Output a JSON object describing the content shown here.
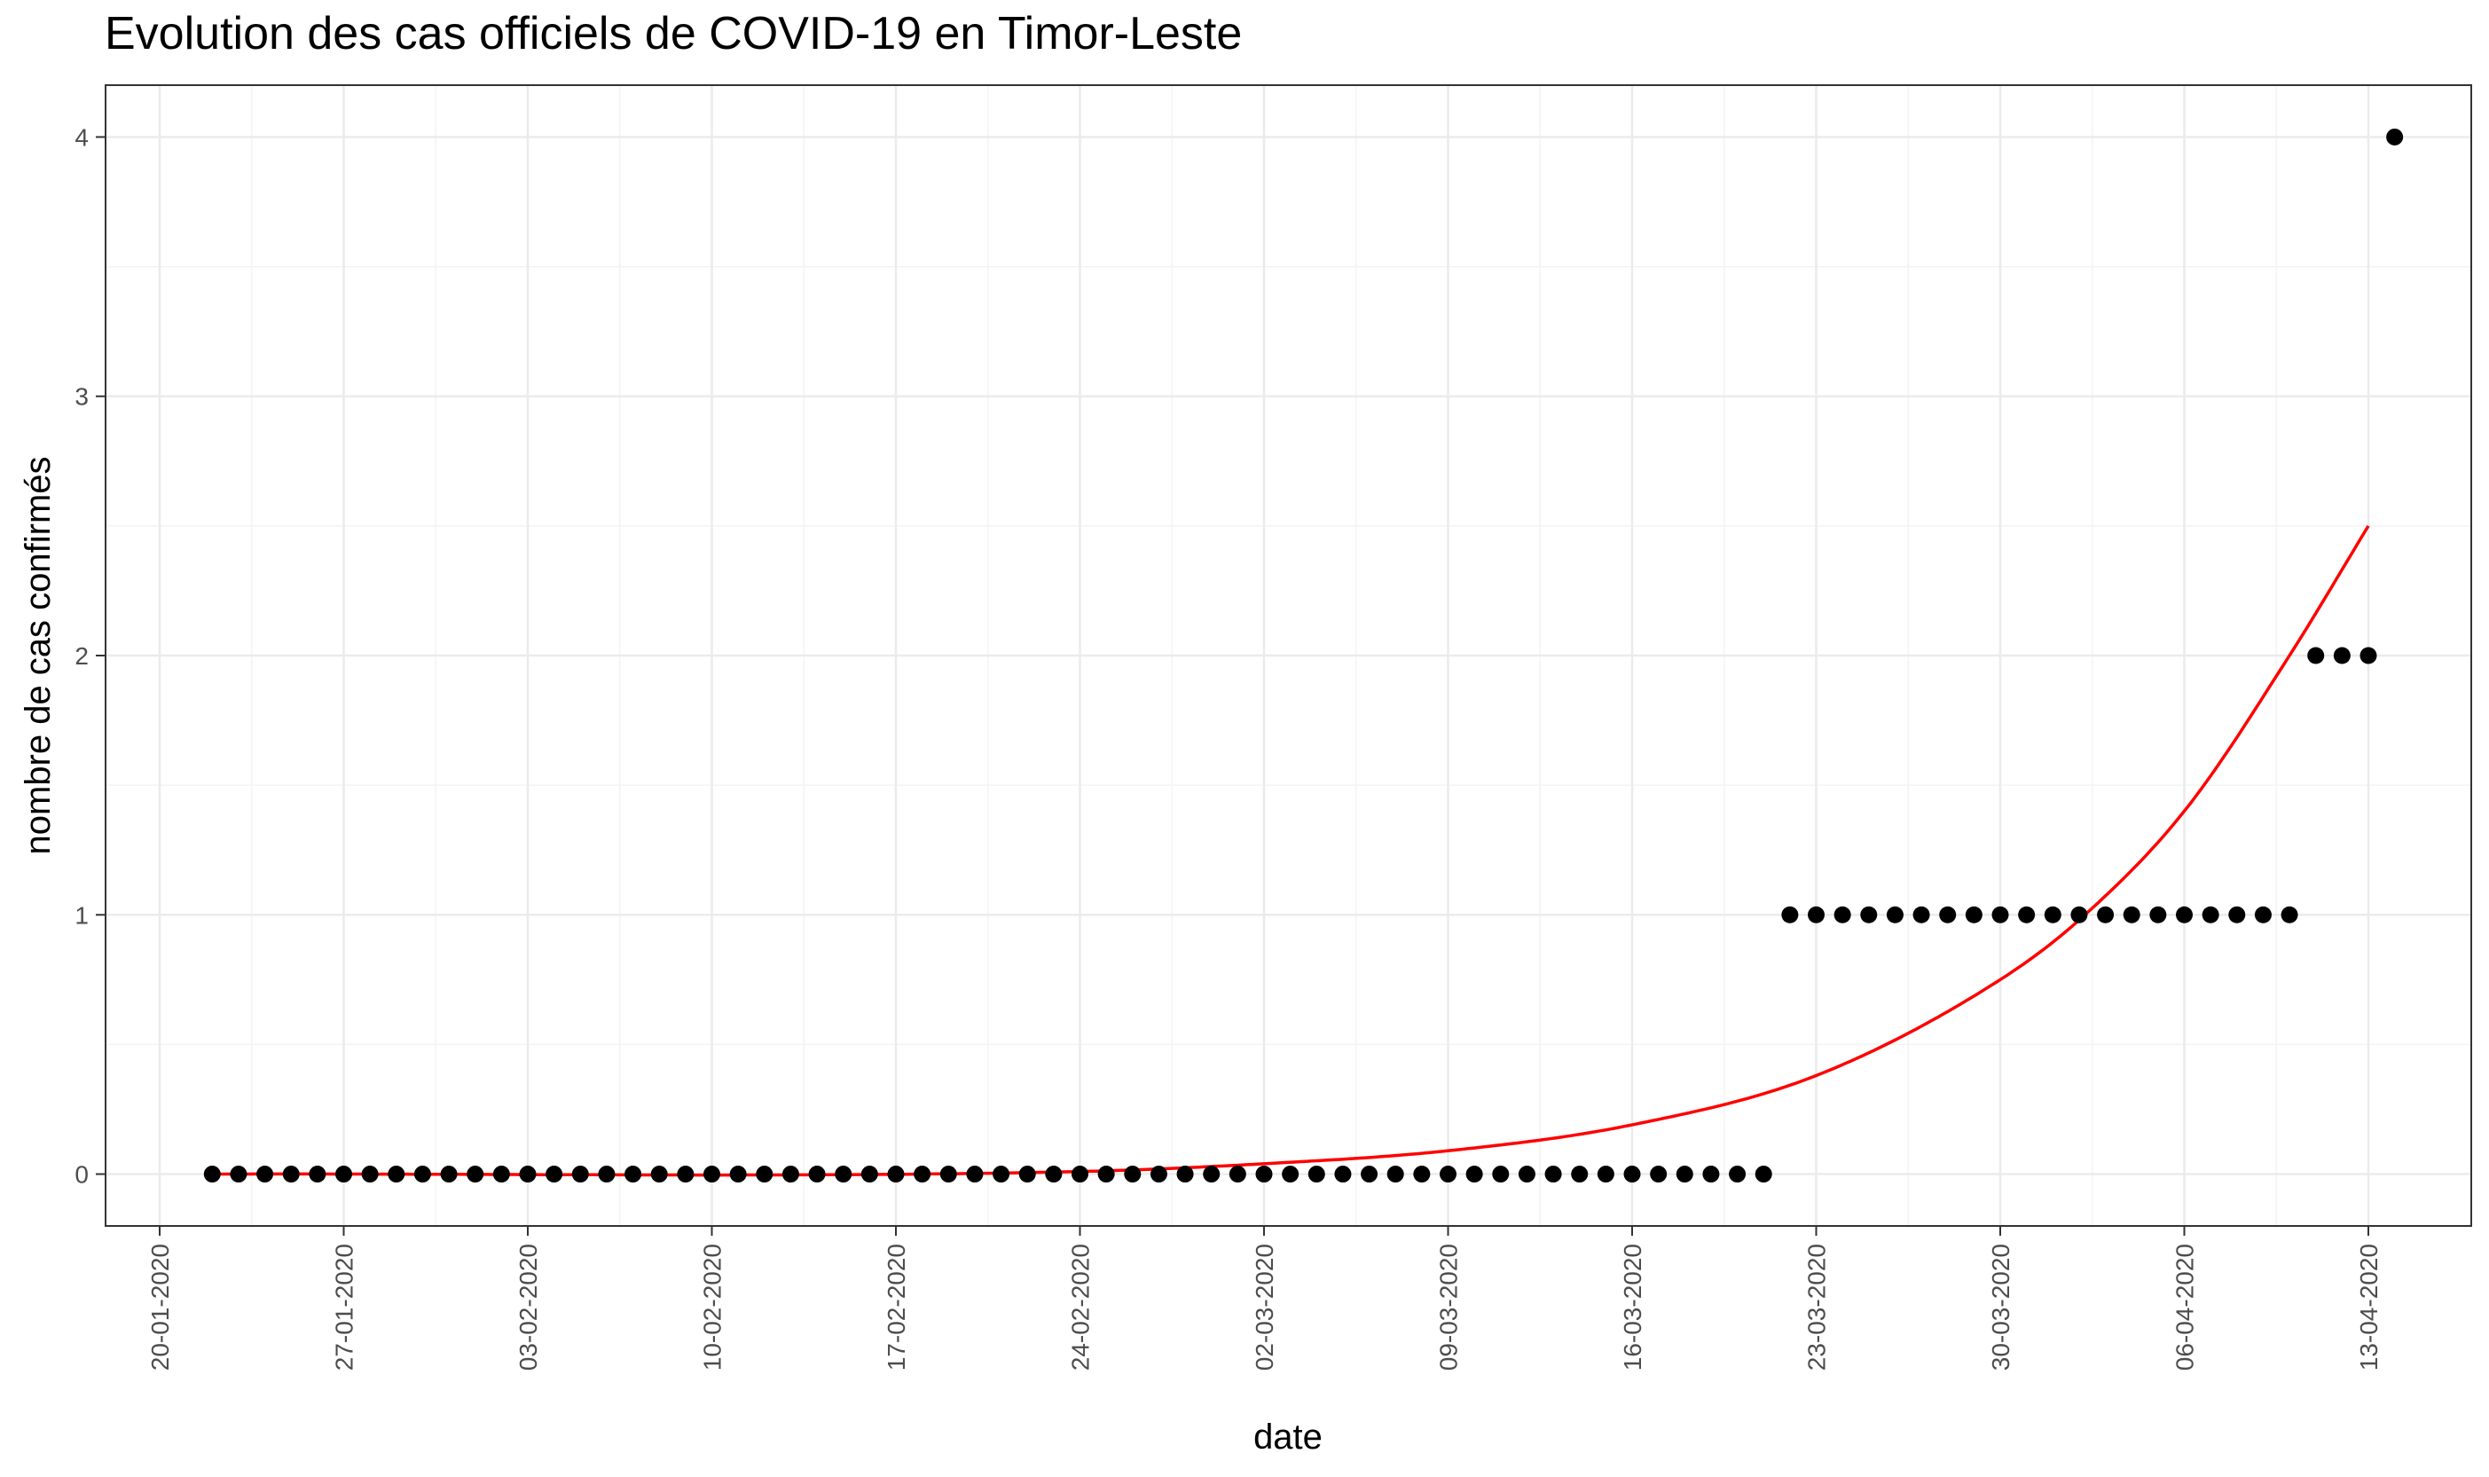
{
  "chart_data": {
    "type": "scatter",
    "title": "Evolution des cas officiels de COVID-19 en Timor-Leste",
    "xlabel": "date",
    "ylabel": "nombre de cas confirmés",
    "x_axis": {
      "kind": "date",
      "start": "2020-01-20",
      "end": "2020-04-13"
    },
    "x_tick_labels": [
      "20-01-2020",
      "27-01-2020",
      "03-02-2020",
      "10-02-2020",
      "17-02-2020",
      "24-02-2020",
      "02-03-2020",
      "09-03-2020",
      "16-03-2020",
      "23-03-2020",
      "30-03-2020",
      "06-04-2020",
      "13-04-2020"
    ],
    "y_ticks": [
      0,
      1,
      2,
      3,
      4
    ],
    "ylim": [
      -0.2,
      4.2
    ],
    "grid": true,
    "series": [
      {
        "kind": "points",
        "color": "#000000",
        "start_date": "2020-01-22",
        "values": [
          0,
          0,
          0,
          0,
          0,
          0,
          0,
          0,
          0,
          0,
          0,
          0,
          0,
          0,
          0,
          0,
          0,
          0,
          0,
          0,
          0,
          0,
          0,
          0,
          0,
          0,
          0,
          0,
          0,
          0,
          0,
          0,
          0,
          0,
          0,
          0,
          0,
          0,
          0,
          0,
          0,
          0,
          0,
          0,
          0,
          0,
          0,
          0,
          0,
          0,
          0,
          0,
          0,
          0,
          0,
          0,
          0,
          0,
          0,
          0,
          1,
          1,
          1,
          1,
          1,
          1,
          1,
          1,
          1,
          1,
          1,
          1,
          1,
          1,
          1,
          1,
          1,
          1,
          1,
          1,
          2,
          2,
          2,
          4
        ]
      },
      {
        "kind": "fit-curve",
        "color": "#ff0000",
        "x": [
          "2020-01-22",
          "2020-02-24",
          "2020-03-02",
          "2020-03-09",
          "2020-03-16",
          "2020-03-23",
          "2020-03-30",
          "2020-04-02",
          "2020-04-06",
          "2020-04-10",
          "2020-04-13"
        ],
        "y": [
          0.0,
          0.01,
          0.04,
          0.09,
          0.19,
          0.38,
          0.75,
          0.98,
          1.4,
          2.0,
          2.5
        ]
      }
    ]
  }
}
